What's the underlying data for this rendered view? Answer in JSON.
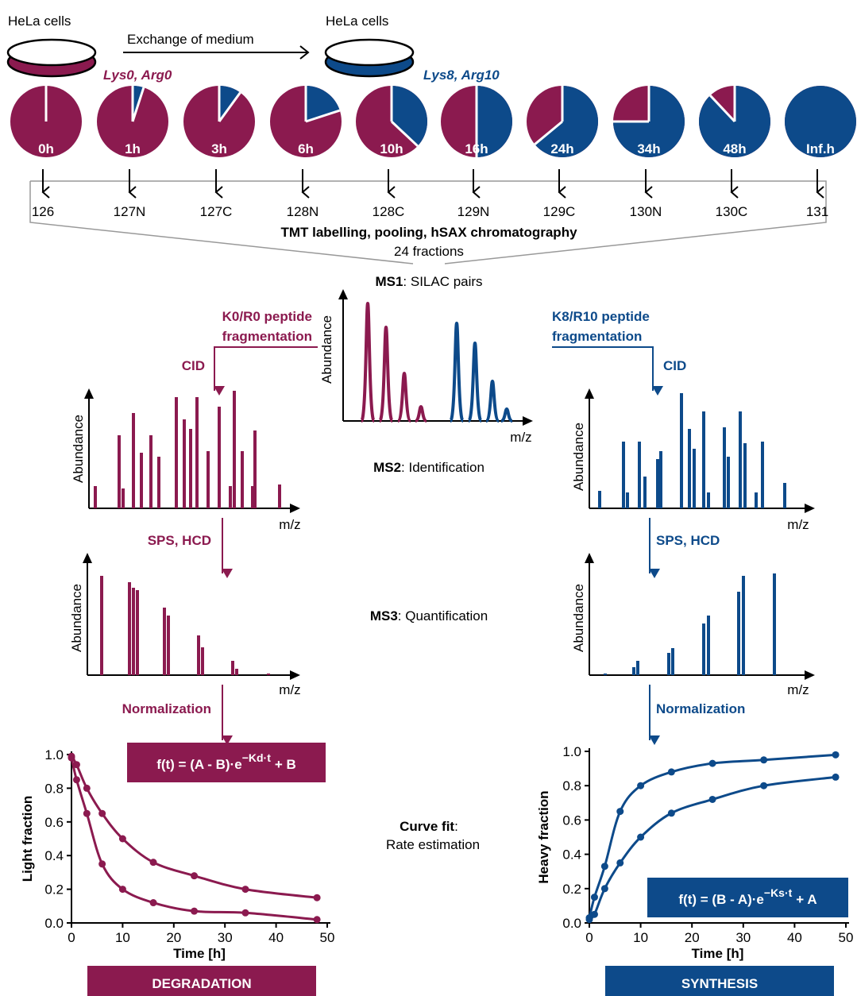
{
  "top": {
    "left_cells": "HeLa cells",
    "right_cells": "HeLa cells",
    "exchange": "Exchange of medium",
    "light_label": "Lys0, Arg0",
    "heavy_label": "Lys8, Arg10"
  },
  "pies": [
    {
      "label": "0h",
      "heavy_fraction": 0,
      "channel": "126"
    },
    {
      "label": "1h",
      "heavy_fraction": 0.05,
      "channel": "127N"
    },
    {
      "label": "3h",
      "heavy_fraction": 0.1,
      "channel": "127C"
    },
    {
      "label": "6h",
      "heavy_fraction": 0.2,
      "channel": "128N"
    },
    {
      "label": "10h",
      "heavy_fraction": 0.37,
      "channel": "128C"
    },
    {
      "label": "16h",
      "heavy_fraction": 0.5,
      "channel": "129N"
    },
    {
      "label": "24h",
      "heavy_fraction": 0.64,
      "channel": "129C"
    },
    {
      "label": "34h",
      "heavy_fraction": 0.75,
      "channel": "130N"
    },
    {
      "label": "48h",
      "heavy_fraction": 0.88,
      "channel": "130C"
    },
    {
      "label": "Inf.h",
      "heavy_fraction": 1,
      "channel": "131"
    }
  ],
  "pooling": {
    "title": "TMT labelling, pooling, hSAX chromatography",
    "fractions": "24 fractions"
  },
  "ms1": {
    "bold": "MS1",
    "rest": ": SILAC pairs",
    "ylabel": "Abundance",
    "xlabel": "m/z"
  },
  "ms2": {
    "bold": "MS2",
    "rest": ": Identification"
  },
  "ms3": {
    "bold": "MS3",
    "rest": ": Quantification"
  },
  "left": {
    "fragmentation": [
      "K0/R0 peptide",
      "fragmentation"
    ],
    "cid": "CID",
    "sps": "SPS, HCD",
    "normalization": "Normalization",
    "ms2_ylabel": "Abundance",
    "ms2_xlabel": "m/z",
    "ms3_ylabel": "Abundance",
    "ms3_xlabel": "m/z"
  },
  "right": {
    "fragmentation": [
      "K8/R10 peptide",
      "fragmentation"
    ],
    "cid": "CID",
    "sps": "SPS, HCD",
    "normalization": "Normalization",
    "ms2_ylabel": "Abundance",
    "ms2_xlabel": "m/z",
    "ms3_ylabel": "Abundance",
    "ms3_xlabel": "m/z"
  },
  "curve_fit": {
    "bold": "Curve fit",
    "rest": ":",
    "sub": "Rate estimation"
  },
  "degradation": {
    "type": "line",
    "color": "#8b1a4f",
    "ylabel": "Light  fraction",
    "xlabel": "Time [h]",
    "xlim": [
      0,
      50
    ],
    "ylim": [
      0,
      1
    ],
    "xticks": [
      0,
      10,
      20,
      30,
      40,
      50
    ],
    "yticks": [
      {
        "value": 0,
        "label": "0.0"
      },
      0.2,
      0.4,
      0.6,
      0.8,
      {
        "value": 1,
        "label": "1.0"
      }
    ],
    "x": [
      0,
      1,
      3,
      6,
      10,
      16,
      24,
      34,
      48
    ],
    "series": [
      {
        "values": [
          0.99,
          0.94,
          0.8,
          0.65,
          0.5,
          0.36,
          0.28,
          0.2,
          0.15
        ]
      },
      {
        "values": [
          0.98,
          0.85,
          0.65,
          0.35,
          0.2,
          0.12,
          0.07,
          0.06,
          0.02
        ]
      }
    ],
    "formula": {
      "base": "f(t) = (A - B)·e",
      "exponent": "−Kd·t",
      "tail": "+ B"
    },
    "banner": "DEGRADATION"
  },
  "synthesis": {
    "type": "line",
    "color": "#0d4a8a",
    "ylabel": "Heavy fraction",
    "xlabel": "Time [h]",
    "xlim": [
      0,
      50
    ],
    "ylim": [
      0,
      1
    ],
    "xticks": [
      0,
      10,
      20,
      30,
      40,
      50
    ],
    "yticks": [
      {
        "value": 0,
        "label": "0.0"
      },
      0.2,
      0.4,
      0.6,
      0.8,
      {
        "value": 1,
        "label": "1.0"
      }
    ],
    "x": [
      0,
      1,
      3,
      6,
      10,
      16,
      24,
      34,
      48
    ],
    "series": [
      {
        "values": [
          0.03,
          0.15,
          0.33,
          0.65,
          0.8,
          0.88,
          0.93,
          0.95,
          0.98
        ]
      },
      {
        "values": [
          0.02,
          0.05,
          0.2,
          0.35,
          0.5,
          0.64,
          0.72,
          0.8,
          0.85
        ]
      }
    ],
    "formula": {
      "base": "f(t) = (B - A)·e",
      "exponent": "−Ks·t",
      "tail": "+ A"
    },
    "banner": "SYNTHESIS"
  }
}
